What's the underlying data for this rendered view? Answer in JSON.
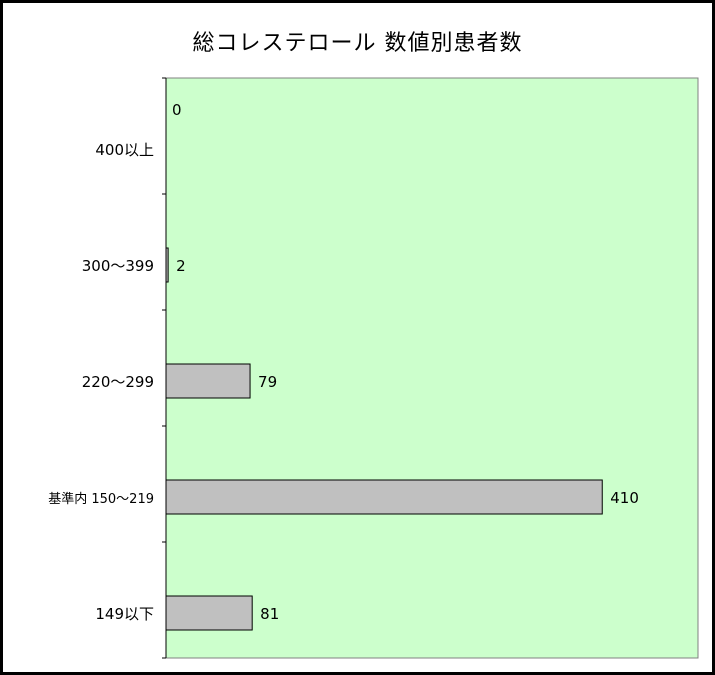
{
  "chart_data": {
    "type": "bar",
    "orientation": "horizontal",
    "title": "総コレステロール 数値別患者数",
    "categories": [
      "400以上",
      "300～399",
      "220～299",
      "基準内 150～219",
      "149以下"
    ],
    "values": [
      0,
      2,
      79,
      410,
      81
    ],
    "xlim": [
      0,
      500
    ],
    "xlabel": "",
    "ylabel": "",
    "grid": false,
    "colors": {
      "plot_background": "#ccffcc",
      "bar_fill": "#c0c0c0",
      "bar_stroke": "#000000"
    }
  }
}
